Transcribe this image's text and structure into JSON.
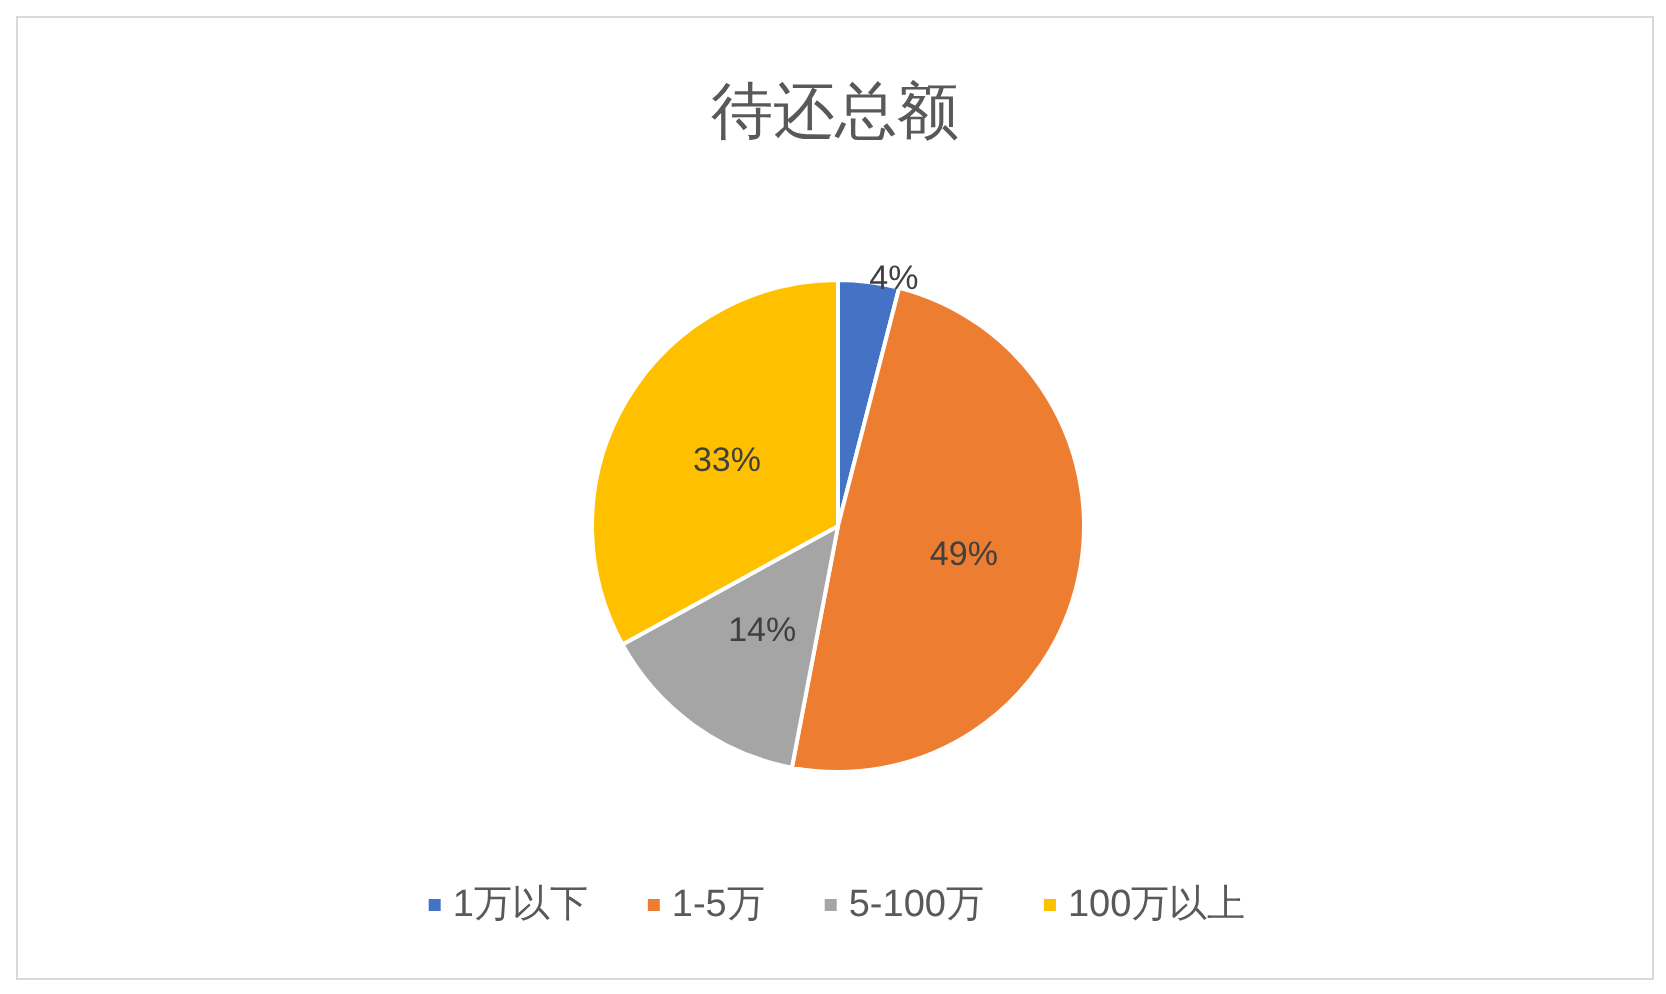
{
  "chart_data": {
    "type": "pie",
    "title": "待还总额",
    "categories": [
      "1万以下",
      "1-5万",
      "5-100万",
      "100万以上"
    ],
    "values": [
      4,
      49,
      14,
      33
    ],
    "colors": [
      "#4472c4",
      "#ed7d31",
      "#a5a5a5",
      "#ffc000"
    ],
    "value_labels": [
      "4%",
      "49%",
      "14%",
      "33%"
    ],
    "legend": "bottom"
  }
}
